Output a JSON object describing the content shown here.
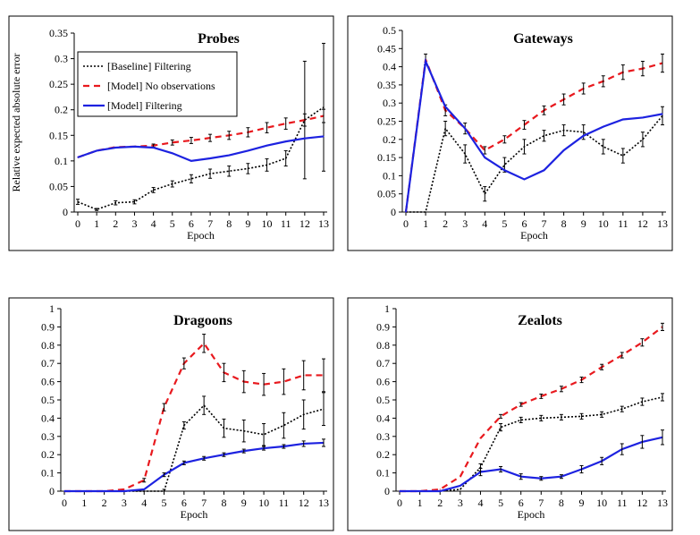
{
  "chart_data": [
    {
      "type": "line",
      "title": "Probes",
      "xlabel": "Epoch",
      "ylabel": "Relative expected absolute error",
      "x": [
        0,
        1,
        2,
        3,
        4,
        5,
        6,
        7,
        8,
        9,
        10,
        11,
        12,
        13
      ],
      "ylim": [
        0,
        0.35
      ],
      "yticks": [
        "0",
        "0.05",
        "0.1",
        "0.15",
        "0.2",
        "0.25",
        "0.3",
        "0.35"
      ],
      "legend": "top-left",
      "series": [
        {
          "name": "[Baseline] Filtering",
          "style": "dotted",
          "color": "#000000",
          "values": [
            0.02,
            0.005,
            0.018,
            0.02,
            0.043,
            0.055,
            0.065,
            0.075,
            0.08,
            0.085,
            0.092,
            0.105,
            0.18,
            0.205
          ],
          "err": [
            0.005,
            0.002,
            0.004,
            0.004,
            0.005,
            0.006,
            0.008,
            0.009,
            0.01,
            0.01,
            0.012,
            0.015,
            0.115,
            0.125
          ]
        },
        {
          "name": "[Model] No observations",
          "style": "dashed",
          "color": "#e8191e",
          "values": [
            0.107,
            0.12,
            0.127,
            0.128,
            0.13,
            0.136,
            0.14,
            0.145,
            0.15,
            0.156,
            0.165,
            0.173,
            0.18,
            0.188
          ],
          "err": [
            0,
            0,
            0,
            0,
            0.003,
            0.005,
            0.006,
            0.007,
            0.008,
            0.009,
            0.01,
            0.011,
            0.012,
            0.013
          ]
        },
        {
          "name": "[Model] Filtering",
          "style": "solid",
          "color": "#1d22e0",
          "values": [
            0.107,
            0.12,
            0.126,
            0.128,
            0.126,
            0.115,
            0.1,
            0.105,
            0.111,
            0.12,
            0.13,
            0.138,
            0.144,
            0.148
          ],
          "err": []
        }
      ]
    },
    {
      "type": "line",
      "title": "Gateways",
      "xlabel": "Epoch",
      "ylabel": "",
      "x": [
        0,
        1,
        2,
        3,
        4,
        5,
        6,
        7,
        8,
        9,
        10,
        11,
        12,
        13
      ],
      "ylim": [
        0,
        0.5
      ],
      "yticks": [
        "0",
        "0.05",
        "0.1",
        "0.15",
        "0.2",
        "0.25",
        "0.3",
        "0.35",
        "0.4",
        "0.45",
        "0.5"
      ],
      "series": [
        {
          "name": "[Baseline] Filtering",
          "style": "dotted",
          "color": "#000000",
          "values": [
            0,
            0,
            0.23,
            0.16,
            0.05,
            0.13,
            0.18,
            0.21,
            0.225,
            0.22,
            0.18,
            0.155,
            0.2,
            0.265
          ],
          "err": [
            0,
            0,
            0.02,
            0.025,
            0.02,
            0.02,
            0.02,
            0.015,
            0.015,
            0.02,
            0.02,
            0.02,
            0.02,
            0.025
          ]
        },
        {
          "name": "[Model] No observations",
          "style": "dashed",
          "color": "#e8191e",
          "values": [
            0,
            0.42,
            0.28,
            0.23,
            0.17,
            0.2,
            0.24,
            0.28,
            0.31,
            0.34,
            0.36,
            0.385,
            0.395,
            0.41
          ],
          "err": [
            0,
            0.015,
            0.015,
            0.015,
            0.01,
            0.01,
            0.012,
            0.012,
            0.015,
            0.015,
            0.015,
            0.02,
            0.02,
            0.025
          ]
        },
        {
          "name": "[Model] Filtering",
          "style": "solid",
          "color": "#1d22e0",
          "values": [
            0,
            0.415,
            0.29,
            0.23,
            0.15,
            0.115,
            0.09,
            0.115,
            0.17,
            0.21,
            0.235,
            0.255,
            0.26,
            0.27
          ],
          "err": []
        }
      ]
    },
    {
      "type": "line",
      "title": "Dragoons",
      "xlabel": "Epoch",
      "ylabel": "",
      "x": [
        0,
        1,
        2,
        3,
        4,
        5,
        6,
        7,
        8,
        9,
        10,
        11,
        12,
        13
      ],
      "ylim": [
        0,
        1
      ],
      "yticks": [
        "0",
        "0.1",
        "0.2",
        "0.3",
        "0.4",
        "0.5",
        "0.6",
        "0.7",
        "0.8",
        "0.9",
        "1"
      ],
      "series": [
        {
          "name": "[Baseline] Filtering",
          "style": "dotted",
          "color": "#000000",
          "values": [
            0,
            0,
            0,
            0,
            0,
            0,
            0.36,
            0.47,
            0.345,
            0.33,
            0.31,
            0.36,
            0.42,
            0.45
          ],
          "err": [
            0,
            0,
            0,
            0,
            0,
            0.01,
            0.02,
            0.05,
            0.05,
            0.06,
            0.06,
            0.07,
            0.08,
            0.09
          ]
        },
        {
          "name": "[Model] No observations",
          "style": "dashed",
          "color": "#e8191e",
          "values": [
            0,
            0,
            0,
            0.01,
            0.06,
            0.46,
            0.7,
            0.81,
            0.65,
            0.6,
            0.585,
            0.6,
            0.635,
            0.635
          ],
          "err": [
            0,
            0,
            0,
            0,
            0.01,
            0.02,
            0.03,
            0.05,
            0.05,
            0.06,
            0.06,
            0.07,
            0.08,
            0.09
          ]
        },
        {
          "name": "[Model] Filtering",
          "style": "solid",
          "color": "#1d22e0",
          "values": [
            0,
            0,
            0,
            0,
            0.01,
            0.09,
            0.155,
            0.18,
            0.2,
            0.22,
            0.235,
            0.245,
            0.26,
            0.265
          ],
          "err": [
            0,
            0,
            0,
            0,
            0,
            0.01,
            0.01,
            0.01,
            0.01,
            0.01,
            0.01,
            0.01,
            0.015,
            0.02
          ]
        }
      ]
    },
    {
      "type": "line",
      "title": "Zealots",
      "xlabel": "Epoch",
      "ylabel": "",
      "x": [
        0,
        1,
        2,
        3,
        4,
        5,
        6,
        7,
        8,
        9,
        10,
        11,
        12,
        13
      ],
      "ylim": [
        0,
        1
      ],
      "yticks": [
        "0",
        "0.1",
        "0.2",
        "0.3",
        "0.4",
        "0.5",
        "0.6",
        "0.7",
        "0.8",
        "0.9",
        "1"
      ],
      "series": [
        {
          "name": "[Baseline] Filtering",
          "style": "dotted",
          "color": "#000000",
          "values": [
            0,
            0,
            0,
            0.01,
            0.13,
            0.35,
            0.39,
            0.4,
            0.405,
            0.41,
            0.42,
            0.45,
            0.49,
            0.515
          ],
          "err": [
            0,
            0,
            0,
            0,
            0.02,
            0.02,
            0.015,
            0.015,
            0.015,
            0.015,
            0.015,
            0.015,
            0.02,
            0.02
          ]
        },
        {
          "name": "[Model] No observations",
          "style": "dashed",
          "color": "#e8191e",
          "values": [
            0,
            0,
            0.01,
            0.08,
            0.29,
            0.41,
            0.475,
            0.52,
            0.56,
            0.61,
            0.68,
            0.745,
            0.815,
            0.9
          ],
          "err": [
            0,
            0,
            0,
            0,
            0,
            0.01,
            0.01,
            0.012,
            0.015,
            0.015,
            0.015,
            0.015,
            0.02,
            0.02
          ]
        },
        {
          "name": "[Model] Filtering",
          "style": "solid",
          "color": "#1d22e0",
          "values": [
            0,
            0,
            0,
            0.03,
            0.105,
            0.12,
            0.08,
            0.07,
            0.08,
            0.12,
            0.165,
            0.23,
            0.27,
            0.295
          ],
          "err": [
            0,
            0,
            0,
            0,
            0.02,
            0.015,
            0.015,
            0.01,
            0.01,
            0.02,
            0.02,
            0.03,
            0.035,
            0.04
          ]
        }
      ]
    }
  ]
}
